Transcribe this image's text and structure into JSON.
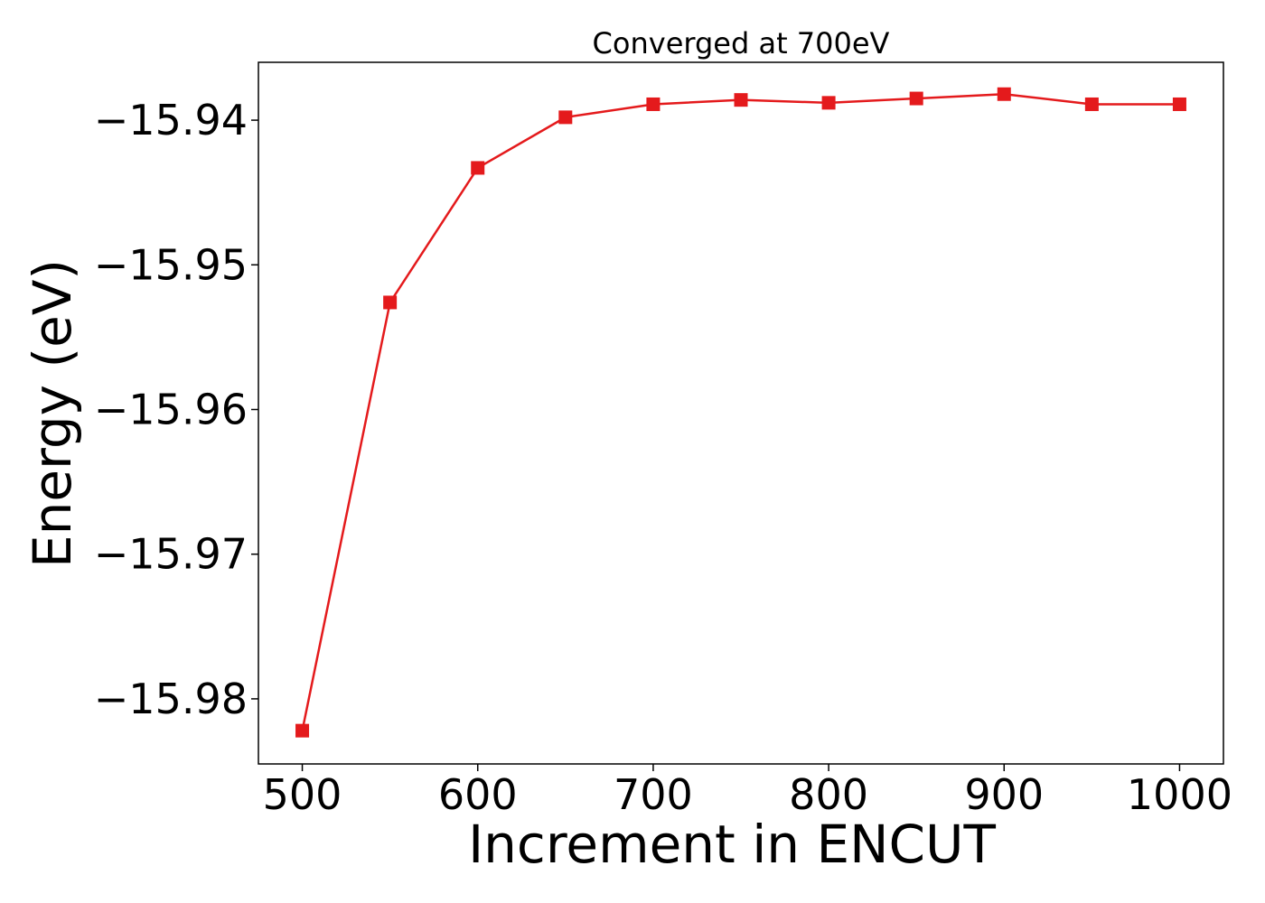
{
  "chart_data": {
    "type": "line",
    "title": "Converged at 700eV",
    "xlabel": "Increment in ENCUT",
    "ylabel": "Energy (eV)",
    "x": [
      500,
      550,
      600,
      650,
      700,
      750,
      800,
      850,
      900,
      950,
      1000
    ],
    "series": [
      {
        "values": [
          -15.9822,
          -15.9526,
          -15.9433,
          -15.9398,
          -15.9389,
          -15.9386,
          -15.9388,
          -15.9385,
          -15.9382,
          -15.9389,
          -15.9389
        ],
        "color": "#e41a1c",
        "marker": "square"
      }
    ],
    "xlim": [
      475,
      1025
    ],
    "ylim": [
      -15.9845,
      -15.936
    ],
    "xticks": [
      500,
      600,
      700,
      800,
      900,
      1000
    ],
    "xtick_labels": [
      "500",
      "600",
      "700",
      "800",
      "900",
      "1000"
    ],
    "yticks": [
      -15.98,
      -15.97,
      -15.96,
      -15.95,
      -15.94
    ],
    "ytick_labels": [
      "−15.98",
      "−15.97",
      "−15.96",
      "−15.95",
      "−15.94"
    ],
    "grid": false,
    "legend": "none"
  }
}
